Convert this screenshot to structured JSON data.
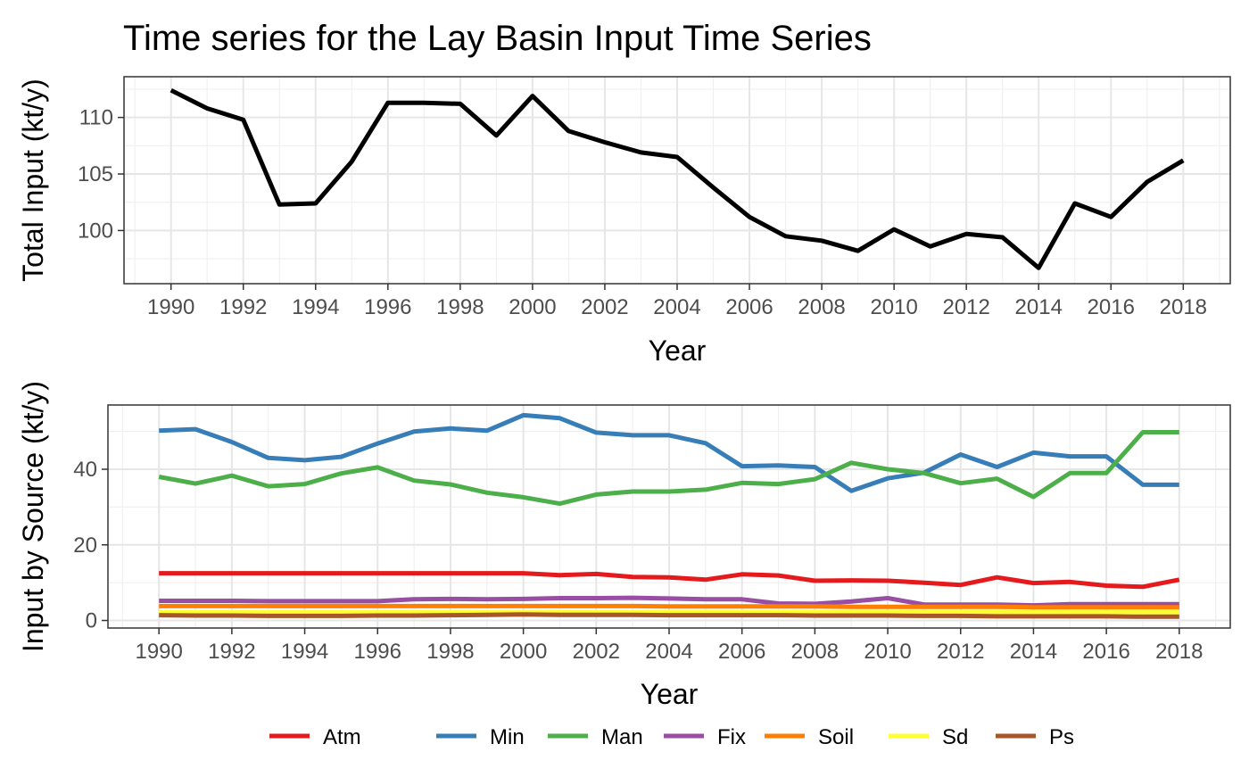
{
  "title": "Time series for the Lay Basin Input Time Series",
  "chart_data": [
    {
      "type": "line",
      "panel": "top",
      "xlabel": "Year",
      "ylabel": "Total Input (kt/y)",
      "xlim": [
        1988.7,
        2019.3
      ],
      "ylim": [
        95.3,
        113.6
      ],
      "x_ticks": [
        1990,
        1992,
        1994,
        1996,
        1998,
        2000,
        2002,
        2004,
        2006,
        2008,
        2010,
        2012,
        2014,
        2016,
        2018
      ],
      "y_ticks": [
        100,
        105,
        110
      ],
      "grid": true,
      "series": [
        {
          "color": "#000000",
          "x": [
            1990,
            1991,
            1992,
            1993,
            1994,
            1995,
            1996,
            1997,
            1998,
            1999,
            2000,
            2001,
            2002,
            2003,
            2004,
            2005,
            2006,
            2007,
            2008,
            2009,
            2010,
            2011,
            2012,
            2013,
            2014,
            2015,
            2016,
            2017,
            2018
          ],
          "values": [
            112.4,
            110.8,
            109.8,
            102.3,
            102.4,
            106.1,
            111.3,
            111.3,
            111.2,
            108.4,
            111.9,
            108.8,
            107.8,
            106.9,
            106.5,
            103.8,
            101.2,
            99.5,
            99.1,
            98.2,
            100.1,
            98.6,
            99.7,
            99.4,
            96.7,
            102.4,
            101.2,
            104.3,
            106.2
          ]
        }
      ]
    },
    {
      "type": "line",
      "panel": "bottom",
      "xlabel": "Year",
      "ylabel": "Input by Source (kt/y)",
      "xlim": [
        1988.6,
        2019.4
      ],
      "ylim": [
        -2,
        57
      ],
      "x_ticks": [
        1990,
        1992,
        1994,
        1996,
        1998,
        2000,
        2002,
        2004,
        2006,
        2008,
        2010,
        2012,
        2014,
        2016,
        2018
      ],
      "y_ticks": [
        0,
        20,
        40
      ],
      "grid": true,
      "legend_position": "bottom",
      "x": [
        1990,
        1991,
        1992,
        1993,
        1994,
        1995,
        1996,
        1997,
        1998,
        1999,
        2000,
        2001,
        2002,
        2003,
        2004,
        2005,
        2006,
        2007,
        2008,
        2009,
        2010,
        2011,
        2012,
        2013,
        2014,
        2015,
        2016,
        2017,
        2018
      ],
      "series": [
        {
          "name": "Atm",
          "color": "#E41A1C",
          "values": [
            12.5,
            12.5,
            12.5,
            12.5,
            12.5,
            12.5,
            12.5,
            12.5,
            12.5,
            12.5,
            12.5,
            12.0,
            12.3,
            11.5,
            11.4,
            10.8,
            12.2,
            11.9,
            10.5,
            10.6,
            10.5,
            10.0,
            9.4,
            11.4,
            9.9,
            10.2,
            9.2,
            8.9,
            10.8
          ]
        },
        {
          "name": "Min",
          "color": "#377EB8",
          "values": [
            50.2,
            50.6,
            47.2,
            43.0,
            42.4,
            43.3,
            46.8,
            50.0,
            50.8,
            50.2,
            54.3,
            53.5,
            49.7,
            49.0,
            49.0,
            46.9,
            40.8,
            41.0,
            40.6,
            34.3,
            37.6,
            39.1,
            43.9,
            40.6,
            44.4,
            43.4,
            43.4,
            35.9,
            35.9
          ]
        },
        {
          "name": "Man",
          "color": "#4DAF4A",
          "values": [
            38.0,
            36.2,
            38.3,
            35.5,
            36.1,
            38.9,
            40.5,
            37.0,
            36.0,
            33.8,
            32.6,
            30.9,
            33.3,
            34.1,
            34.1,
            34.6,
            36.4,
            36.1,
            37.4,
            41.7,
            40.0,
            39.0,
            36.3,
            37.5,
            32.7,
            39.0,
            39.0,
            49.8,
            49.8
          ]
        },
        {
          "name": "Fix",
          "color": "#984EA3",
          "values": [
            5.2,
            5.2,
            5.2,
            5.1,
            5.1,
            5.1,
            5.1,
            5.6,
            5.7,
            5.6,
            5.7,
            5.9,
            5.9,
            6.0,
            5.8,
            5.6,
            5.6,
            4.5,
            4.4,
            5.0,
            5.9,
            4.2,
            4.2,
            4.2,
            4.0,
            4.3,
            4.3,
            4.3,
            4.3
          ]
        },
        {
          "name": "Soil",
          "color": "#FF7F00",
          "values": [
            3.8,
            3.8,
            3.8,
            3.8,
            3.8,
            3.8,
            3.8,
            3.8,
            3.8,
            3.8,
            3.8,
            3.8,
            3.8,
            3.8,
            3.7,
            3.7,
            3.7,
            3.7,
            3.7,
            3.6,
            3.6,
            3.6,
            3.6,
            3.6,
            3.5,
            3.5,
            3.5,
            3.5,
            3.5
          ]
        },
        {
          "name": "Sd",
          "color": "#FFFF33",
          "values": [
            2.2,
            2.2,
            2.2,
            2.2,
            2.2,
            2.2,
            2.2,
            2.2,
            2.2,
            2.2,
            2.2,
            2.2,
            2.2,
            2.2,
            2.2,
            2.2,
            2.2,
            2.2,
            2.2,
            2.2,
            2.2,
            2.2,
            2.2,
            2.2,
            2.2,
            2.2,
            2.2,
            2.2,
            2.2
          ]
        },
        {
          "name": "Ps",
          "color": "#A65628",
          "values": [
            1.4,
            1.3,
            1.3,
            1.2,
            1.2,
            1.2,
            1.3,
            1.3,
            1.4,
            1.5,
            1.6,
            1.5,
            1.5,
            1.5,
            1.4,
            1.4,
            1.4,
            1.4,
            1.3,
            1.3,
            1.3,
            1.2,
            1.2,
            1.1,
            1.1,
            1.1,
            1.1,
            1.0,
            1.0
          ]
        }
      ]
    }
  ]
}
